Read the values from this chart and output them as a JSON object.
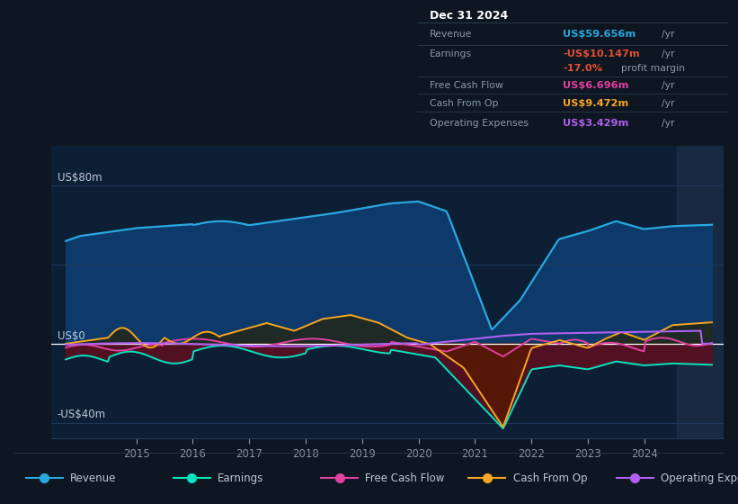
{
  "bg_color": "#0e1621",
  "plot_bg_color": "#0d1f35",
  "text_color": "#8899aa",
  "text_color_bright": "#c0c8d8",
  "ylabel_top": "US$80m",
  "ylabel_zero": "US$0",
  "ylabel_bot": "-US$40m",
  "ylim": [
    -48,
    100
  ],
  "xlim_start": 2013.5,
  "xlim_end": 2025.4,
  "xticks": [
    2015,
    2016,
    2017,
    2018,
    2019,
    2020,
    2021,
    2022,
    2023,
    2024
  ],
  "revenue_color": "#29a8e0",
  "earnings_color": "#00e5c0",
  "fcf_color": "#e040a0",
  "cashfromop_color": "#f5a623",
  "opex_color": "#b060f0",
  "revenue_fill_color": "#0d3a6a",
  "legend": [
    {
      "label": "Revenue",
      "color": "#29a8e0"
    },
    {
      "label": "Earnings",
      "color": "#00e5c0"
    },
    {
      "label": "Free Cash Flow",
      "color": "#e040a0"
    },
    {
      "label": "Cash From Op",
      "color": "#f5a623"
    },
    {
      "label": "Operating Expenses",
      "color": "#b060f0"
    }
  ]
}
